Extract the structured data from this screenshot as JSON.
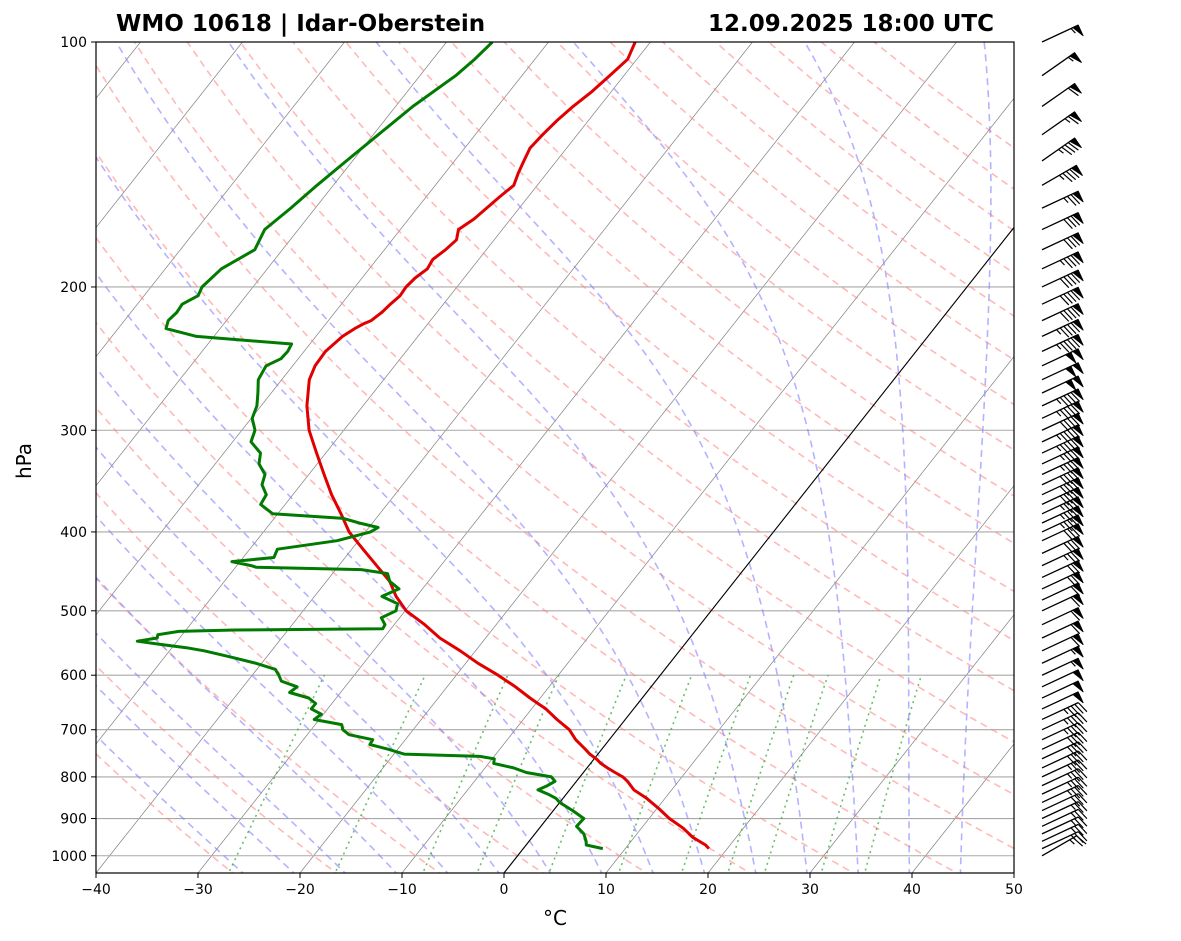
{
  "chart_data": {
    "type": "skew-t",
    "title_left": "WMO 10618 | Idar-Oberstein",
    "title_right": "12.09.2025 18:00 UTC",
    "xlabel": "°C",
    "ylabel": "hPa",
    "xlim": [
      -40,
      50
    ],
    "ylim_hpa": [
      1050,
      100
    ],
    "x_ticks": [
      -40,
      -30,
      -20,
      -10,
      0,
      10,
      20,
      30,
      40,
      50
    ],
    "x_tick_labels": [
      "−40",
      "−30",
      "−20",
      "−10",
      "0",
      "10",
      "20",
      "30",
      "40",
      "50"
    ],
    "y_ticks": [
      1000,
      900,
      800,
      700,
      600,
      500,
      400,
      300,
      200,
      100
    ],
    "y_tick_labels": [
      "1000",
      "900",
      "800",
      "700",
      "600",
      "500",
      "400",
      "300",
      "200",
      "100"
    ],
    "zero_isotherm_c": 0,
    "colors": {
      "temperature": "#e00000",
      "dewpoint": "#007a00",
      "dry_adiabats": "#ff8080",
      "moist_adiabats": "#8080ff",
      "mixing_ratio": "#3aa83a",
      "isotherms": "#7f7f7f",
      "isobars": "#a8a8a8"
    },
    "temperature_profile": {
      "name": "Temperature",
      "p": [
        980,
        970,
        950,
        925,
        900,
        875,
        850,
        830,
        810,
        800,
        790,
        780,
        770,
        760,
        750,
        740,
        720,
        700,
        680,
        660,
        650,
        640,
        620,
        600,
        580,
        560,
        540,
        520,
        500,
        480,
        460,
        440,
        420,
        400,
        380,
        360,
        340,
        320,
        300,
        280,
        260,
        250,
        240,
        230,
        225,
        222,
        220,
        215,
        210,
        205,
        200,
        195,
        190,
        185,
        180,
        175,
        170,
        165,
        160,
        155,
        150,
        145,
        140,
        135,
        130,
        125,
        120,
        115,
        110,
        105,
        100
      ],
      "t": [
        18.2,
        17.6,
        15.8,
        14.1,
        12.0,
        10.2,
        8.2,
        6.3,
        5.0,
        4.2,
        3.1,
        2.0,
        1.0,
        0.2,
        -0.8,
        -1.6,
        -3.3,
        -4.7,
        -6.7,
        -8.6,
        -9.8,
        -11.0,
        -13.3,
        -15.9,
        -18.8,
        -21.5,
        -24.5,
        -27.0,
        -29.9,
        -32.0,
        -33.8,
        -36.3,
        -38.9,
        -41.6,
        -43.8,
        -46.2,
        -48.5,
        -50.9,
        -53.4,
        -55.5,
        -57.3,
        -57.8,
        -57.9,
        -57.4,
        -56.8,
        -56.3,
        -55.8,
        -55.4,
        -55.2,
        -54.9,
        -55.0,
        -54.8,
        -54.3,
        -54.5,
        -54.0,
        -53.7,
        -54.3,
        -53.6,
        -53.2,
        -52.8,
        -52.3,
        -52.8,
        -53.2,
        -53.6,
        -53.4,
        -53.1,
        -52.6,
        -51.9,
        -51.4,
        -50.9,
        -51.5
      ]
    },
    "dewpoint_profile": {
      "name": "Dewpoint",
      "p": [
        980,
        970,
        960,
        940,
        920,
        900,
        880,
        860,
        850,
        840,
        830,
        820,
        810,
        800,
        790,
        780,
        770,
        760,
        755,
        750,
        740,
        730,
        720,
        710,
        700,
        690,
        680,
        670,
        660,
        650,
        640,
        630,
        620,
        610,
        600,
        590,
        580,
        570,
        560,
        555,
        550,
        545,
        540,
        535,
        530,
        528,
        526,
        520,
        510,
        500,
        490,
        480,
        470,
        460,
        450,
        445,
        442,
        440,
        435,
        430,
        420,
        410,
        400,
        395,
        390,
        385,
        380,
        370,
        360,
        350,
        340,
        330,
        320,
        310,
        300,
        290,
        280,
        270,
        260,
        250,
        245,
        240,
        235,
        230,
        225,
        220,
        215,
        210,
        205,
        200,
        190,
        180,
        170,
        160,
        150,
        140,
        130,
        120,
        110,
        105,
        100
      ],
      "td": [
        7.8,
        5.9,
        5.6,
        4.8,
        3.5,
        3.6,
        1.9,
        0.0,
        -0.7,
        -1.8,
        -3.1,
        -2.5,
        -2.1,
        -2.8,
        -5.6,
        -7.2,
        -9.5,
        -9.8,
        -11.4,
        -19.0,
        -20.9,
        -23.1,
        -23.2,
        -25.9,
        -26.9,
        -27.4,
        -30.5,
        -30.2,
        -31.6,
        -31.6,
        -32.7,
        -35.0,
        -34.7,
        -36.7,
        -37.4,
        -38.2,
        -40.6,
        -43.5,
        -46.6,
        -48.6,
        -51.3,
        -53.9,
        -52.2,
        -52.4,
        -50.6,
        -45.2,
        -30.8,
        -30.9,
        -31.8,
        -30.9,
        -31.3,
        -33.4,
        -32.3,
        -33.8,
        -34.6,
        -37.5,
        -48.0,
        -48.6,
        -50.8,
        -47.0,
        -47.3,
        -42.1,
        -39.5,
        -39.1,
        -41.3,
        -43.2,
        -50.5,
        -52.4,
        -52.6,
        -53.8,
        -54.3,
        -55.7,
        -56.4,
        -58.2,
        -58.7,
        -59.9,
        -60.4,
        -61.3,
        -62.3,
        -62.6,
        -61.7,
        -61.6,
        -61.8,
        -71.7,
        -75.3,
        -75.7,
        -75.5,
        -75.6,
        -74.7,
        -75.0,
        -74.5,
        -72.7,
        -73.3,
        -72.4,
        -71.6,
        -70.6,
        -69.5,
        -68.3,
        -66.5,
        -65.9,
        -65.5
      ]
    },
    "wind_barbs": {
      "units": "kt",
      "p": [
        1000,
        980,
        960,
        940,
        920,
        900,
        880,
        860,
        840,
        820,
        800,
        780,
        760,
        740,
        720,
        700,
        680,
        660,
        640,
        620,
        600,
        580,
        560,
        540,
        520,
        500,
        485,
        470,
        455,
        440,
        425,
        410,
        400,
        390,
        380,
        370,
        360,
        350,
        340,
        330,
        320,
        310,
        300,
        290,
        280,
        270,
        260,
        250,
        240,
        230,
        220,
        210,
        200,
        190,
        180,
        170,
        160,
        150,
        140,
        130,
        120,
        110,
        100
      ],
      "speed": [
        25,
        25,
        25,
        25,
        25,
        25,
        30,
        35,
        35,
        35,
        35,
        40,
        40,
        40,
        45,
        45,
        45,
        50,
        50,
        50,
        55,
        55,
        60,
        60,
        60,
        60,
        60,
        70,
        70,
        75,
        80,
        80,
        85,
        85,
        85,
        90,
        90,
        90,
        85,
        85,
        95,
        95,
        90,
        95,
        95,
        100,
        100,
        100,
        95,
        95,
        90,
        90,
        90,
        85,
        80,
        80,
        75,
        85,
        85,
        65,
        60,
        55,
        55
      ],
      "direction": [
        240,
        245,
        245,
        245,
        245,
        245,
        245,
        245,
        245,
        245,
        245,
        245,
        245,
        245,
        245,
        245,
        245,
        245,
        245,
        245,
        245,
        245,
        245,
        245,
        245,
        245,
        245,
        245,
        245,
        245,
        245,
        245,
        245,
        245,
        245,
        245,
        245,
        245,
        245,
        245,
        245,
        245,
        245,
        245,
        245,
        245,
        245,
        245,
        245,
        245,
        245,
        245,
        245,
        245,
        245,
        245,
        245,
        240,
        235,
        235,
        235,
        235,
        245
      ]
    }
  }
}
